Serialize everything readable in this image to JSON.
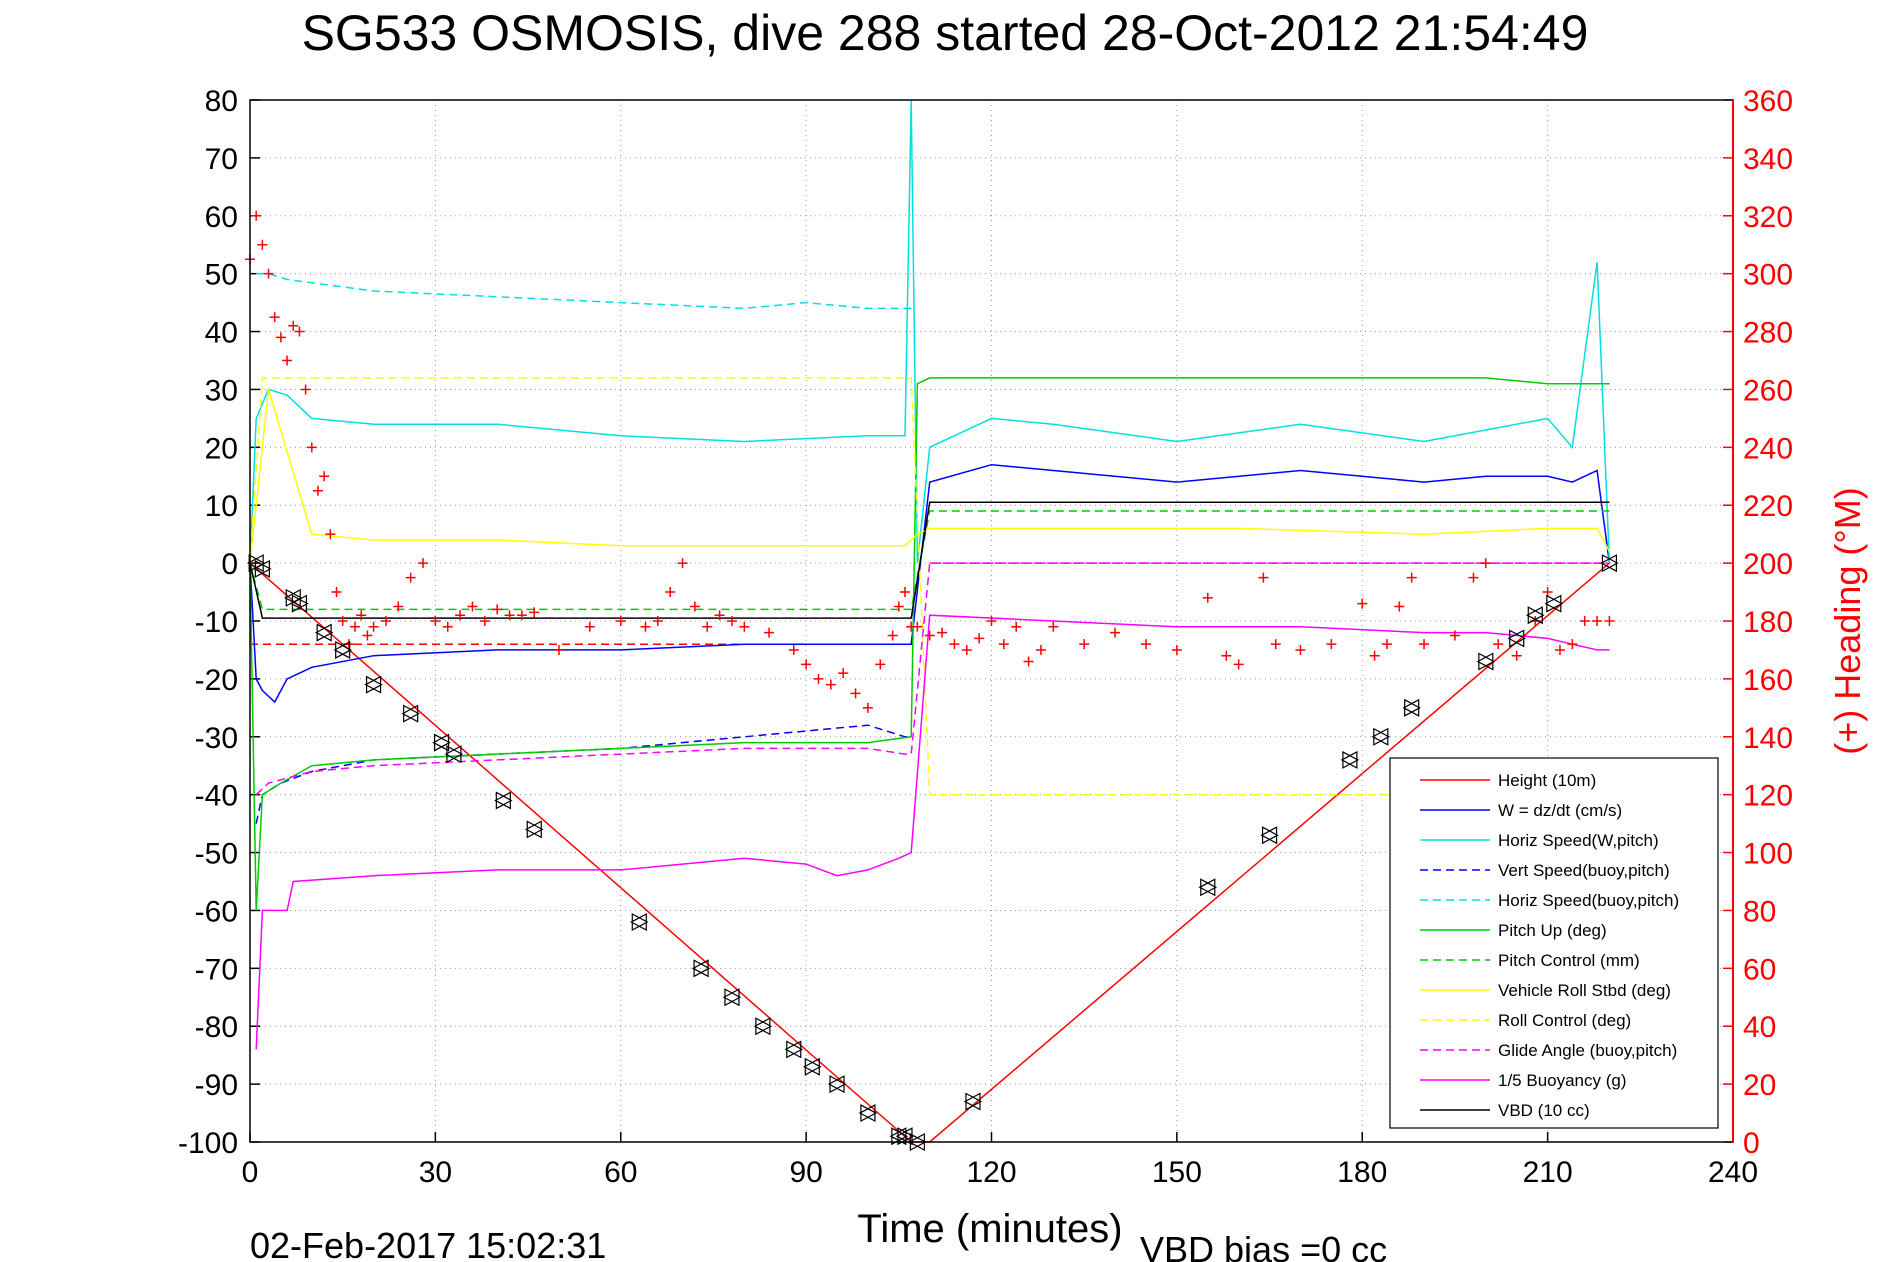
{
  "chart_data": {
    "type": "line",
    "title": "SG533 OSMOSIS, dive 288 started 28-Oct-2012 21:54:49",
    "xlabel": "Time (minutes)",
    "ylabel_right": "(+) Heading (°M)",
    "footer_left": "02-Feb-2017 15:02:31",
    "footer_right": "VBD bias =0 cc",
    "xlim": [
      0,
      240
    ],
    "ylim": [
      -100,
      80
    ],
    "y2lim": [
      0,
      360
    ],
    "xticks": [
      "0",
      "30",
      "60",
      "90",
      "120",
      "150",
      "180",
      "210",
      "240"
    ],
    "yticks": [
      "80",
      "70",
      "60",
      "50",
      "40",
      "30",
      "20",
      "10",
      "0",
      "-10",
      "-20",
      "-30",
      "-40",
      "-50",
      "-60",
      "-70",
      "-80",
      "-90",
      "-100"
    ],
    "y2ticks": [
      "360",
      "340",
      "320",
      "300",
      "280",
      "260",
      "240",
      "220",
      "200",
      "180",
      "160",
      "140",
      "120",
      "100",
      "80",
      "60",
      "40",
      "20",
      "0"
    ],
    "grid": true,
    "legend_position": "bottom-right",
    "colors": {
      "axis_right": "#ff0000",
      "heading": "#ff0000"
    },
    "series": [
      {
        "name": "Height (10m)",
        "color": "#ff0000",
        "style": "solid",
        "x": [
          0,
          107,
          110,
          220
        ],
        "y": [
          0,
          -100,
          -100,
          0
        ]
      },
      {
        "name": "W = dz/dt (cm/s)",
        "color": "#0000ff",
        "style": "solid",
        "x": [
          0,
          1,
          2,
          4,
          6,
          10,
          20,
          40,
          60,
          80,
          100,
          107,
          110,
          120,
          130,
          150,
          170,
          190,
          200,
          210,
          214,
          218,
          220
        ],
        "y": [
          0,
          -20,
          -22,
          -24,
          -20,
          -18,
          -16,
          -15,
          -15,
          -14,
          -14,
          -14,
          14,
          17,
          16,
          14,
          16,
          14,
          15,
          15,
          14,
          16,
          0
        ]
      },
      {
        "name": "Horiz Speed(W,pitch)",
        "color": "#00e0e0",
        "style": "solid",
        "x": [
          0,
          1,
          3,
          6,
          10,
          20,
          40,
          60,
          80,
          100,
          106,
          107,
          108,
          110,
          120,
          130,
          150,
          170,
          190,
          200,
          210,
          214,
          218,
          220
        ],
        "y": [
          0,
          25,
          30,
          29,
          25,
          24,
          24,
          22,
          21,
          22,
          22,
          80,
          0,
          20,
          25,
          24,
          21,
          24,
          21,
          23,
          25,
          20,
          52,
          0
        ]
      },
      {
        "name": "Vert Speed(buoy,pitch)",
        "color": "#0000ff",
        "style": "dashed",
        "x": [
          1,
          2,
          5,
          10,
          20,
          40,
          60,
          80,
          100,
          106,
          107
        ],
        "y": [
          -45,
          -40,
          -38,
          -36,
          -34,
          -33,
          -32,
          -30,
          -28,
          -30,
          -30
        ]
      },
      {
        "name": "Horiz Speed(buoy,pitch)",
        "color": "#00e0e0",
        "style": "dashed",
        "x": [
          1,
          3,
          6,
          20,
          40,
          60,
          80,
          90,
          100,
          106,
          107
        ],
        "y": [
          50,
          50,
          49,
          47,
          46,
          45,
          44,
          45,
          44,
          44,
          44
        ]
      },
      {
        "name": "Pitch Up (deg)",
        "color": "#00cc00",
        "style": "solid",
        "x": [
          0,
          1,
          2,
          5,
          10,
          20,
          40,
          60,
          80,
          100,
          107,
          108,
          110,
          120,
          150,
          170,
          190,
          200,
          210,
          214,
          218,
          220
        ],
        "y": [
          0,
          -60,
          -40,
          -38,
          -35,
          -34,
          -33,
          -32,
          -31,
          -31,
          -30,
          31,
          32,
          32,
          32,
          32,
          32,
          32,
          31,
          31,
          31,
          31
        ]
      },
      {
        "name": "Pitch Control (mm)",
        "color": "#00cc00",
        "style": "dashed",
        "x": [
          0,
          2,
          107,
          110,
          220
        ],
        "y": [
          0,
          -8,
          -8,
          9,
          9
        ]
      },
      {
        "name": "Vehicle Roll Stbd (deg)",
        "color": "#ffff00",
        "style": "solid",
        "x": [
          0,
          3,
          10,
          20,
          40,
          60,
          80,
          100,
          106,
          108,
          110,
          130,
          160,
          190,
          210,
          218,
          220
        ],
        "y": [
          0,
          30,
          5,
          4,
          4,
          3,
          3,
          3,
          3,
          5,
          6,
          6,
          6,
          5,
          6,
          6,
          2
        ]
      },
      {
        "name": "Roll Control (deg)",
        "color": "#ffff00",
        "style": "dashed",
        "x": [
          0,
          2,
          10,
          20,
          40,
          60,
          80,
          100,
          107,
          110,
          220
        ],
        "y": [
          0,
          32,
          32,
          32,
          32,
          32,
          32,
          32,
          32,
          -40,
          -40
        ]
      },
      {
        "name": "Glide Angle (buoy,pitch)",
        "color": "#ff00ff",
        "style": "dashed",
        "x": [
          1,
          3,
          10,
          20,
          40,
          60,
          80,
          100,
          106,
          107,
          110,
          220
        ],
        "y": [
          -40,
          -38,
          -36,
          -35,
          -34,
          -33,
          -32,
          -32,
          -33,
          -33,
          0,
          0
        ]
      },
      {
        "name": "1/5 Buoyancy (g)",
        "color": "#ff00ff",
        "style": "solid",
        "x": [
          1,
          2,
          6,
          7,
          20,
          40,
          60,
          80,
          90,
          95,
          100,
          105,
          107,
          110,
          130,
          150,
          170,
          190,
          200,
          210,
          214,
          218,
          220
        ],
        "y": [
          -84,
          -60,
          -60,
          -55,
          -54,
          -53,
          -53,
          -51,
          -52,
          -54,
          -53,
          -51,
          -50,
          -9,
          -10,
          -11,
          -11,
          -12,
          -12,
          -13,
          -14,
          -15,
          -15
        ]
      },
      {
        "name": "VBD (10 cc)",
        "color": "#000000",
        "style": "solid",
        "x": [
          0,
          2,
          107,
          110,
          220
        ],
        "y": [
          0,
          -9.5,
          -9.5,
          10.5,
          10.5
        ]
      }
    ],
    "reference_lines": [
      {
        "color": "#ff0000",
        "style": "dashed",
        "x": [
          0,
          107
        ],
        "y": [
          -14,
          -14
        ]
      },
      {
        "color": "#ff00ff",
        "style": "dashed",
        "x": [
          110,
          220
        ],
        "y": [
          0,
          0
        ]
      }
    ],
    "heading_points": {
      "name": "(+) Heading (°M)",
      "color": "#ff0000",
      "marker": "+",
      "x": [
        0,
        1,
        2,
        3,
        4,
        5,
        6,
        7,
        8,
        9,
        10,
        11,
        12,
        13,
        14,
        15,
        16,
        17,
        18,
        19,
        20,
        22,
        24,
        26,
        28,
        30,
        32,
        34,
        36,
        38,
        40,
        42,
        44,
        46,
        50,
        55,
        60,
        64,
        66,
        68,
        70,
        72,
        74,
        76,
        78,
        80,
        84,
        88,
        90,
        92,
        94,
        96,
        98,
        100,
        102,
        104,
        105,
        106,
        107,
        108,
        110,
        112,
        114,
        116,
        118,
        120,
        122,
        124,
        126,
        128,
        130,
        135,
        140,
        145,
        150,
        155,
        158,
        160,
        164,
        166,
        170,
        175,
        180,
        182,
        184,
        186,
        188,
        190,
        195,
        198,
        200,
        202,
        205,
        208,
        210,
        212,
        214,
        216,
        218,
        220
      ],
      "y": [
        305,
        320,
        310,
        300,
        285,
        278,
        270,
        282,
        280,
        260,
        240,
        225,
        230,
        210,
        190,
        180,
        172,
        178,
        182,
        175,
        178,
        180,
        185,
        195,
        200,
        180,
        178,
        182,
        185,
        180,
        184,
        182,
        182,
        183,
        170,
        178,
        180,
        178,
        180,
        190,
        200,
        185,
        178,
        182,
        180,
        178,
        176,
        170,
        165,
        160,
        158,
        162,
        155,
        150,
        165,
        175,
        185,
        190,
        178,
        178,
        175,
        176,
        172,
        170,
        174,
        180,
        172,
        178,
        166,
        170,
        178,
        172,
        176,
        172,
        170,
        188,
        168,
        165,
        195,
        172,
        170,
        172,
        186,
        168,
        172,
        185,
        195,
        172,
        175,
        195,
        200,
        172,
        168,
        180,
        190,
        170,
        172,
        180,
        180,
        180
      ]
    },
    "depth_markers": {
      "color": "#000000",
      "x": [
        1,
        2,
        7,
        8,
        12,
        15,
        20,
        26,
        31,
        33,
        41,
        46,
        63,
        73,
        78,
        83,
        88,
        91,
        95,
        100,
        105,
        106,
        108,
        117,
        155,
        165,
        178,
        183,
        188,
        200,
        205,
        208,
        211,
        220
      ],
      "y": [
        0,
        -1,
        -6,
        -7,
        -12,
        -15,
        -21,
        -26,
        -31,
        -33,
        -41,
        -46,
        -62,
        -70,
        -75,
        -80,
        -84,
        -87,
        -90,
        -95,
        -99,
        -99,
        -100,
        -93,
        -56,
        -47,
        -34,
        -30,
        -25,
        -17,
        -13,
        -9,
        -7,
        0
      ]
    }
  }
}
